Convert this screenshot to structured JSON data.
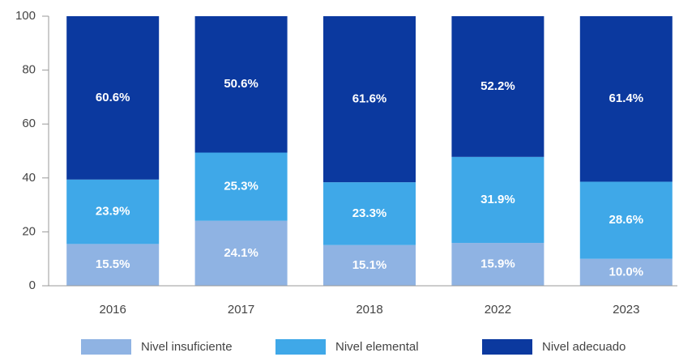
{
  "chart_data": {
    "type": "stacked_bar",
    "categories": [
      "2016",
      "2017",
      "2018",
      "2022",
      "2023"
    ],
    "series": [
      {
        "name": "Nivel insuficiente",
        "color": "#8fb3e3",
        "values": [
          15.5,
          24.1,
          15.1,
          15.9,
          10.0
        ],
        "value_labels": [
          "15.5%",
          "24.1%",
          "15.1%",
          "15.9%",
          "10.0%"
        ]
      },
      {
        "name": "Nivel elemental",
        "color": "#3fa8e8",
        "values": [
          23.9,
          25.3,
          23.3,
          31.9,
          28.6
        ],
        "value_labels": [
          "23.9%",
          "25.3%",
          "23.3%",
          "31.9%",
          "28.6%"
        ]
      },
      {
        "name": "Nivel adecuado",
        "color": "#0b399f",
        "values": [
          60.6,
          50.6,
          61.6,
          52.2,
          61.4
        ],
        "value_labels": [
          "60.6%",
          "50.6%",
          "61.6%",
          "52.2%",
          "61.4%"
        ]
      }
    ],
    "ylim": [
      0,
      100
    ],
    "yticks": [
      0,
      20,
      40,
      60,
      80,
      100
    ],
    "grid": false,
    "legend": "bottom"
  }
}
